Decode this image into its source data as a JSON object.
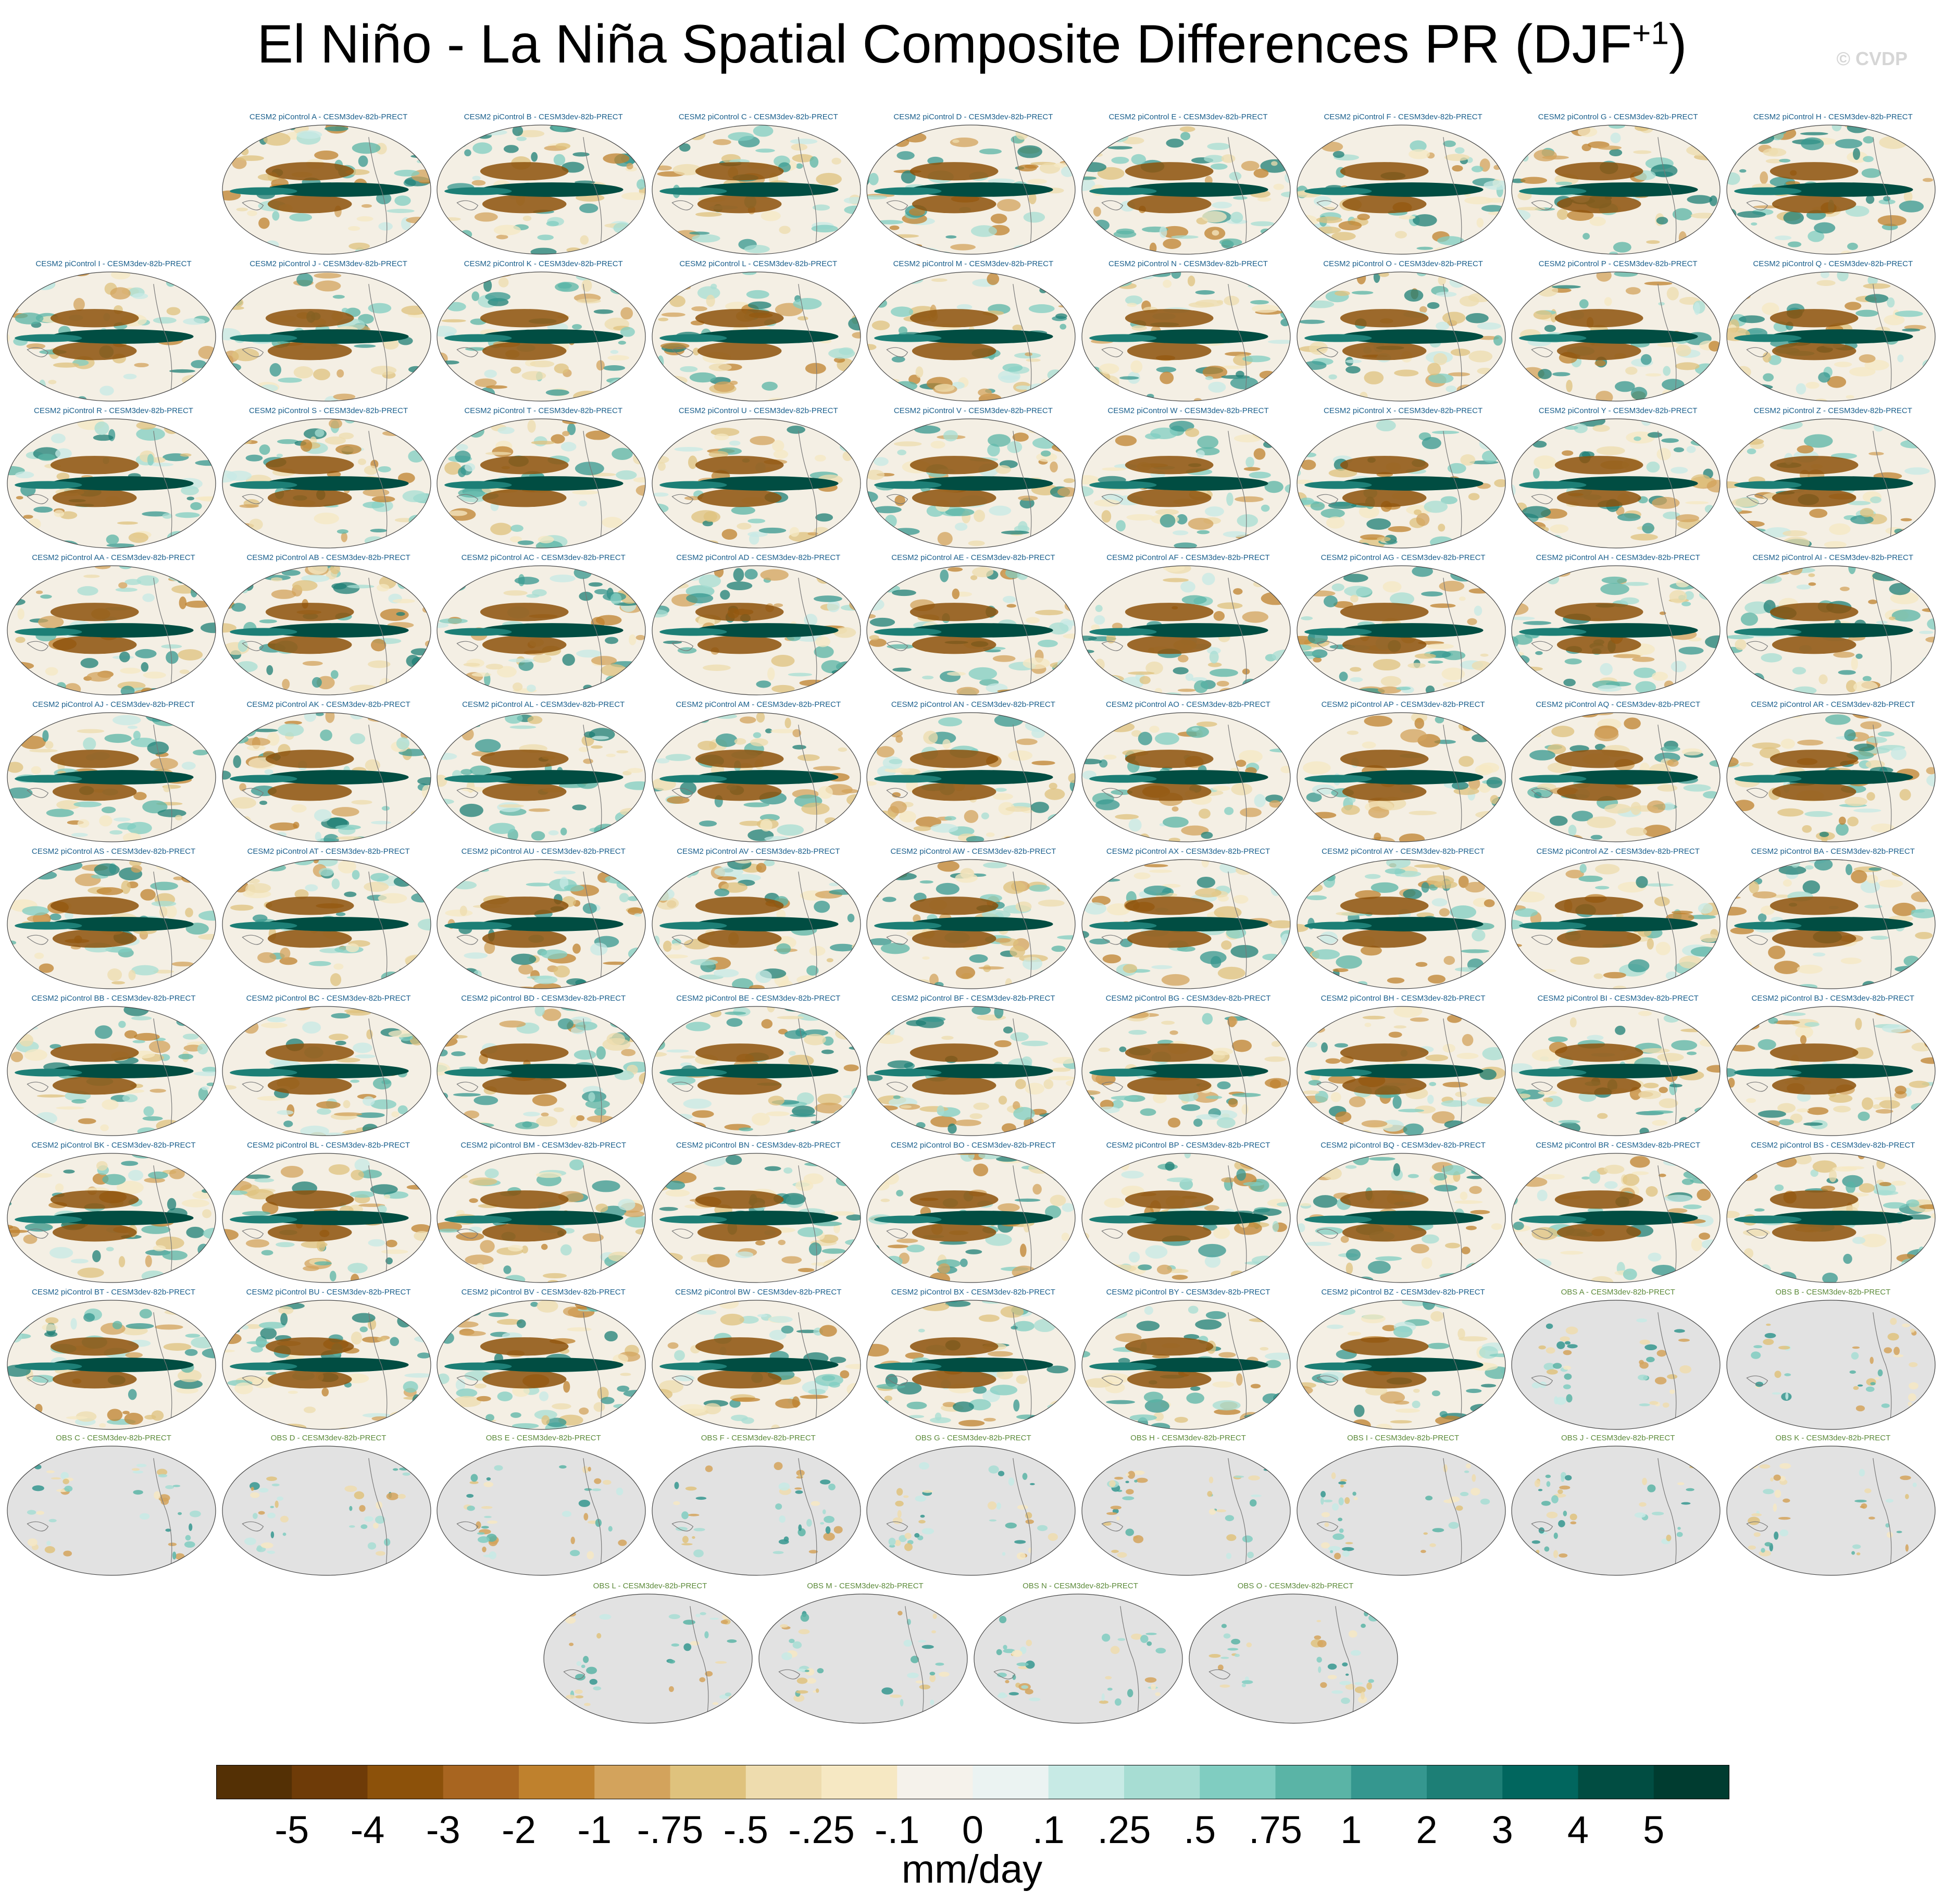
{
  "figure": {
    "title_main": "El Niño - La Niña Spatial Composite Differences PR (DJF",
    "title_sup": "+1",
    "title_close": ")",
    "watermark": "© CVDP",
    "units": "mm/day"
  },
  "panels": [
    {
      "label": "CESM2 piControl A - CESM3dev-82b-PRECT",
      "kind": "model"
    },
    {
      "label": "CESM2 piControl B - CESM3dev-82b-PRECT",
      "kind": "model"
    },
    {
      "label": "CESM2 piControl C - CESM3dev-82b-PRECT",
      "kind": "model"
    },
    {
      "label": "CESM2 piControl D - CESM3dev-82b-PRECT",
      "kind": "model"
    },
    {
      "label": "CESM2 piControl E - CESM3dev-82b-PRECT",
      "kind": "model"
    },
    {
      "label": "CESM2 piControl F - CESM3dev-82b-PRECT",
      "kind": "model"
    },
    {
      "label": "CESM2 piControl G - CESM3dev-82b-PRECT",
      "kind": "model"
    },
    {
      "label": "CESM2 piControl H - CESM3dev-82b-PRECT",
      "kind": "model"
    },
    {
      "label": "CESM2 piControl I - CESM3dev-82b-PRECT",
      "kind": "model"
    },
    {
      "label": "CESM2 piControl J - CESM3dev-82b-PRECT",
      "kind": "model"
    },
    {
      "label": "CESM2 piControl K - CESM3dev-82b-PRECT",
      "kind": "model"
    },
    {
      "label": "CESM2 piControl L - CESM3dev-82b-PRECT",
      "kind": "model"
    },
    {
      "label": "CESM2 piControl M - CESM3dev-82b-PRECT",
      "kind": "model"
    },
    {
      "label": "CESM2 piControl N - CESM3dev-82b-PRECT",
      "kind": "model"
    },
    {
      "label": "CESM2 piControl O - CESM3dev-82b-PRECT",
      "kind": "model"
    },
    {
      "label": "CESM2 piControl P - CESM3dev-82b-PRECT",
      "kind": "model"
    },
    {
      "label": "CESM2 piControl Q - CESM3dev-82b-PRECT",
      "kind": "model"
    },
    {
      "label": "CESM2 piControl R - CESM3dev-82b-PRECT",
      "kind": "model"
    },
    {
      "label": "CESM2 piControl S - CESM3dev-82b-PRECT",
      "kind": "model"
    },
    {
      "label": "CESM2 piControl T - CESM3dev-82b-PRECT",
      "kind": "model"
    },
    {
      "label": "CESM2 piControl U - CESM3dev-82b-PRECT",
      "kind": "model"
    },
    {
      "label": "CESM2 piControl V - CESM3dev-82b-PRECT",
      "kind": "model"
    },
    {
      "label": "CESM2 piControl W - CESM3dev-82b-PRECT",
      "kind": "model"
    },
    {
      "label": "CESM2 piControl X - CESM3dev-82b-PRECT",
      "kind": "model"
    },
    {
      "label": "CESM2 piControl Y - CESM3dev-82b-PRECT",
      "kind": "model"
    },
    {
      "label": "CESM2 piControl Z - CESM3dev-82b-PRECT",
      "kind": "model"
    },
    {
      "label": "CESM2 piControl AA - CESM3dev-82b-PRECT",
      "kind": "model"
    },
    {
      "label": "CESM2 piControl AB - CESM3dev-82b-PRECT",
      "kind": "model"
    },
    {
      "label": "CESM2 piControl AC - CESM3dev-82b-PRECT",
      "kind": "model"
    },
    {
      "label": "CESM2 piControl AD - CESM3dev-82b-PRECT",
      "kind": "model"
    },
    {
      "label": "CESM2 piControl AE - CESM3dev-82b-PRECT",
      "kind": "model"
    },
    {
      "label": "CESM2 piControl AF - CESM3dev-82b-PRECT",
      "kind": "model"
    },
    {
      "label": "CESM2 piControl AG - CESM3dev-82b-PRECT",
      "kind": "model"
    },
    {
      "label": "CESM2 piControl AH - CESM3dev-82b-PRECT",
      "kind": "model"
    },
    {
      "label": "CESM2 piControl AI - CESM3dev-82b-PRECT",
      "kind": "model"
    },
    {
      "label": "CESM2 piControl AJ - CESM3dev-82b-PRECT",
      "kind": "model"
    },
    {
      "label": "CESM2 piControl AK - CESM3dev-82b-PRECT",
      "kind": "model"
    },
    {
      "label": "CESM2 piControl AL - CESM3dev-82b-PRECT",
      "kind": "model"
    },
    {
      "label": "CESM2 piControl AM - CESM3dev-82b-PRECT",
      "kind": "model"
    },
    {
      "label": "CESM2 piControl AN - CESM3dev-82b-PRECT",
      "kind": "model"
    },
    {
      "label": "CESM2 piControl AO - CESM3dev-82b-PRECT",
      "kind": "model"
    },
    {
      "label": "CESM2 piControl AP - CESM3dev-82b-PRECT",
      "kind": "model"
    },
    {
      "label": "CESM2 piControl AQ - CESM3dev-82b-PRECT",
      "kind": "model"
    },
    {
      "label": "CESM2 piControl AR - CESM3dev-82b-PRECT",
      "kind": "model"
    },
    {
      "label": "CESM2 piControl AS - CESM3dev-82b-PRECT",
      "kind": "model"
    },
    {
      "label": "CESM2 piControl AT - CESM3dev-82b-PRECT",
      "kind": "model"
    },
    {
      "label": "CESM2 piControl AU - CESM3dev-82b-PRECT",
      "kind": "model"
    },
    {
      "label": "CESM2 piControl AV - CESM3dev-82b-PRECT",
      "kind": "model"
    },
    {
      "label": "CESM2 piControl AW - CESM3dev-82b-PRECT",
      "kind": "model"
    },
    {
      "label": "CESM2 piControl AX - CESM3dev-82b-PRECT",
      "kind": "model"
    },
    {
      "label": "CESM2 piControl AY - CESM3dev-82b-PRECT",
      "kind": "model"
    },
    {
      "label": "CESM2 piControl AZ - CESM3dev-82b-PRECT",
      "kind": "model"
    },
    {
      "label": "CESM2 piControl BA - CESM3dev-82b-PRECT",
      "kind": "model"
    },
    {
      "label": "CESM2 piControl BB - CESM3dev-82b-PRECT",
      "kind": "model"
    },
    {
      "label": "CESM2 piControl BC - CESM3dev-82b-PRECT",
      "kind": "model"
    },
    {
      "label": "CESM2 piControl BD - CESM3dev-82b-PRECT",
      "kind": "model"
    },
    {
      "label": "CESM2 piControl BE - CESM3dev-82b-PRECT",
      "kind": "model"
    },
    {
      "label": "CESM2 piControl BF - CESM3dev-82b-PRECT",
      "kind": "model"
    },
    {
      "label": "CESM2 piControl BG - CESM3dev-82b-PRECT",
      "kind": "model"
    },
    {
      "label": "CESM2 piControl BH - CESM3dev-82b-PRECT",
      "kind": "model"
    },
    {
      "label": "CESM2 piControl BI - CESM3dev-82b-PRECT",
      "kind": "model"
    },
    {
      "label": "CESM2 piControl BJ - CESM3dev-82b-PRECT",
      "kind": "model"
    },
    {
      "label": "CESM2 piControl BK - CESM3dev-82b-PRECT",
      "kind": "model"
    },
    {
      "label": "CESM2 piControl BL - CESM3dev-82b-PRECT",
      "kind": "model"
    },
    {
      "label": "CESM2 piControl BM - CESM3dev-82b-PRECT",
      "kind": "model"
    },
    {
      "label": "CESM2 piControl BN - CESM3dev-82b-PRECT",
      "kind": "model"
    },
    {
      "label": "CESM2 piControl BO - CESM3dev-82b-PRECT",
      "kind": "model"
    },
    {
      "label": "CESM2 piControl BP - CESM3dev-82b-PRECT",
      "kind": "model"
    },
    {
      "label": "CESM2 piControl BQ - CESM3dev-82b-PRECT",
      "kind": "model"
    },
    {
      "label": "CESM2 piControl BR - CESM3dev-82b-PRECT",
      "kind": "model"
    },
    {
      "label": "CESM2 piControl BS - CESM3dev-82b-PRECT",
      "kind": "model"
    },
    {
      "label": "CESM2 piControl BT - CESM3dev-82b-PRECT",
      "kind": "model"
    },
    {
      "label": "CESM2 piControl BU - CESM3dev-82b-PRECT",
      "kind": "model"
    },
    {
      "label": "CESM2 piControl BV - CESM3dev-82b-PRECT",
      "kind": "model"
    },
    {
      "label": "CESM2 piControl BW - CESM3dev-82b-PRECT",
      "kind": "model"
    },
    {
      "label": "CESM2 piControl BX - CESM3dev-82b-PRECT",
      "kind": "model"
    },
    {
      "label": "CESM2 piControl BY - CESM3dev-82b-PRECT",
      "kind": "model"
    },
    {
      "label": "CESM2 piControl BZ - CESM3dev-82b-PRECT",
      "kind": "model"
    },
    {
      "label": "OBS A - CESM3dev-82b-PRECT",
      "kind": "obs"
    },
    {
      "label": "OBS B - CESM3dev-82b-PRECT",
      "kind": "obs"
    },
    {
      "label": "OBS C - CESM3dev-82b-PRECT",
      "kind": "obs"
    },
    {
      "label": "OBS D - CESM3dev-82b-PRECT",
      "kind": "obs"
    },
    {
      "label": "OBS E - CESM3dev-82b-PRECT",
      "kind": "obs"
    },
    {
      "label": "OBS F - CESM3dev-82b-PRECT",
      "kind": "obs"
    },
    {
      "label": "OBS G - CESM3dev-82b-PRECT",
      "kind": "obs"
    },
    {
      "label": "OBS H - CESM3dev-82b-PRECT",
      "kind": "obs"
    },
    {
      "label": "OBS I - CESM3dev-82b-PRECT",
      "kind": "obs"
    },
    {
      "label": "OBS J - CESM3dev-82b-PRECT",
      "kind": "obs"
    },
    {
      "label": "OBS K - CESM3dev-82b-PRECT",
      "kind": "obs"
    },
    {
      "label": "OBS L - CESM3dev-82b-PRECT",
      "kind": "obs"
    },
    {
      "label": "OBS M - CESM3dev-82b-PRECT",
      "kind": "obs"
    },
    {
      "label": "OBS N - CESM3dev-82b-PRECT",
      "kind": "obs"
    },
    {
      "label": "OBS O - CESM3dev-82b-PRECT",
      "kind": "obs"
    }
  ],
  "colorbar": {
    "colors": [
      "#543005",
      "#6e3b08",
      "#8c510a",
      "#a86520",
      "#bf812d",
      "#d3a35c",
      "#dfc27d",
      "#eedcae",
      "#f6e8c3",
      "#f5f2eb",
      "#ebf3f2",
      "#c7eae5",
      "#a7ddd3",
      "#80cdc1",
      "#5ab4a6",
      "#35978f",
      "#1d7f76",
      "#01665e",
      "#014d42",
      "#003c30"
    ],
    "ticks": [
      "-5",
      "-4",
      "-3",
      "-2",
      "-1",
      "-.75",
      "-.5",
      "-.25",
      "-.1",
      "0",
      ".1",
      ".25",
      ".5",
      ".75",
      "1",
      "2",
      "3",
      "4",
      "5"
    ]
  }
}
